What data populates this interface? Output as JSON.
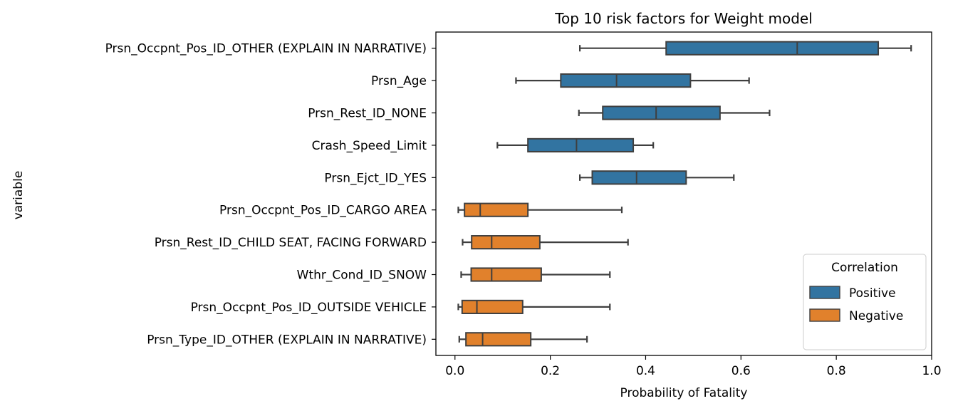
{
  "chart_data": {
    "type": "boxplot",
    "title": "Top 10 risk factors for Weight model",
    "xlabel": "Probability of Fatality",
    "ylabel": "variable",
    "xlim": [
      -0.04,
      1.0
    ],
    "xticks": [
      0.0,
      0.2,
      0.4,
      0.6,
      0.8,
      1.0
    ],
    "xtick_labels": [
      "0.0",
      "0.2",
      "0.4",
      "0.6",
      "0.8",
      "1.0"
    ],
    "grid": false,
    "orientation": "horizontal",
    "categories": [
      "Prsn_Occpnt_Pos_ID_OTHER (EXPLAIN IN NARRATIVE)",
      "Prsn_Age",
      "Prsn_Rest_ID_NONE",
      "Crash_Speed_Limit",
      "Prsn_Ejct_ID_YES",
      "Prsn_Occpnt_Pos_ID_CARGO AREA",
      "Prsn_Rest_ID_CHILD SEAT, FACING FORWARD",
      "Wthr_Cond_ID_SNOW",
      "Prsn_Occpnt_Pos_ID_OUTSIDE VEHICLE",
      "Prsn_Type_ID_OTHER (EXPLAIN IN NARRATIVE)"
    ],
    "series": [
      {
        "name": "Positive",
        "color": "#3274a1",
        "boxes": [
          {
            "category": 0,
            "whislo": 0.262,
            "q1": 0.443,
            "med": 0.718,
            "q3": 0.888,
            "whishi": 0.957
          },
          {
            "category": 1,
            "whislo": 0.128,
            "q1": 0.222,
            "med": 0.339,
            "q3": 0.494,
            "whishi": 0.617
          },
          {
            "category": 2,
            "whislo": 0.26,
            "q1": 0.31,
            "med": 0.422,
            "q3": 0.556,
            "whishi": 0.66
          },
          {
            "category": 3,
            "whislo": 0.089,
            "q1": 0.153,
            "med": 0.255,
            "q3": 0.374,
            "whishi": 0.416
          },
          {
            "category": 4,
            "whislo": 0.262,
            "q1": 0.288,
            "med": 0.381,
            "q3": 0.485,
            "whishi": 0.585
          }
        ]
      },
      {
        "name": "Negative",
        "color": "#e1812c",
        "boxes": [
          {
            "category": 5,
            "whislo": 0.007,
            "q1": 0.02,
            "med": 0.053,
            "q3": 0.153,
            "whishi": 0.35
          },
          {
            "category": 6,
            "whislo": 0.016,
            "q1": 0.035,
            "med": 0.077,
            "q3": 0.178,
            "whishi": 0.363
          },
          {
            "category": 7,
            "whislo": 0.013,
            "q1": 0.034,
            "med": 0.077,
            "q3": 0.181,
            "whishi": 0.325
          },
          {
            "category": 8,
            "whislo": 0.007,
            "q1": 0.015,
            "med": 0.046,
            "q3": 0.142,
            "whishi": 0.325
          },
          {
            "category": 9,
            "whislo": 0.009,
            "q1": 0.023,
            "med": 0.058,
            "q3": 0.159,
            "whishi": 0.277
          }
        ]
      }
    ],
    "legend": {
      "title": "Correlation",
      "placement": "lower-right",
      "entries": [
        "Positive",
        "Negative"
      ]
    }
  }
}
